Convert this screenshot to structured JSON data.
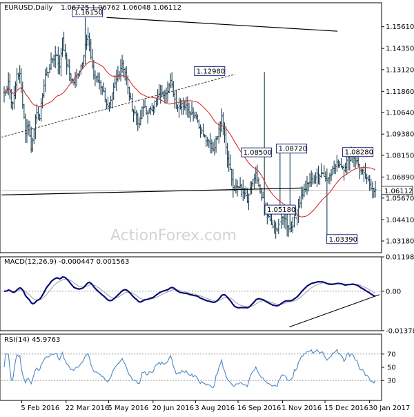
{
  "chart_data": [
    {
      "type": "ohlc",
      "panel": "price",
      "header": {
        "symbol": "EURUSD,Daily",
        "values": "1.06725 1.06762 1.06048 1.06112"
      },
      "ylim": [
        1.025,
        1.17
      ],
      "y_ticks": [
        "1.15610",
        "1.14350",
        "1.13120",
        "1.11860",
        "1.10640",
        "1.09380",
        "1.08150",
        "1.06890",
        "1.05670",
        "1.04410",
        "1.03180"
      ],
      "last_price": "1.06112",
      "x_ticks": [
        "5 Feb 2016",
        "22 Mar 2016",
        "5 May 2016",
        "20 Jun 2016",
        "3 Aug 2016",
        "16 Sep 2016",
        "1 Nov 2016",
        "15 Dec 2016",
        "30 Jan 2017"
      ],
      "annotations": [
        {
          "text": "1.16150",
          "date": "2016-05-03",
          "value": 1.1615
        },
        {
          "text": "1.12980",
          "date": "2016-09-08",
          "value": 1.1298
        },
        {
          "text": "1.08500",
          "date": "2016-10-25",
          "value": 1.085
        },
        {
          "text": "1.08720",
          "date": "2016-11-09",
          "value": 1.0872
        },
        {
          "text": "1.05180",
          "date": "2016-11-15",
          "value": 1.0518
        },
        {
          "text": "1.03390",
          "date": "2017-01-03",
          "value": 1.0339
        },
        {
          "text": "1.08280",
          "date": "2017-02-02",
          "value": 1.0828
        }
      ],
      "closes": [
        1.118,
        1.125,
        1.112,
        1.115,
        1.129,
        1.128,
        1.112,
        1.095,
        1.1,
        1.085,
        1.098,
        1.105,
        1.103,
        1.117,
        1.128,
        1.13,
        1.136,
        1.138,
        1.14,
        1.132,
        1.15,
        1.138,
        1.132,
        1.126,
        1.124,
        1.128,
        1.131,
        1.136,
        1.146,
        1.15,
        1.139,
        1.128,
        1.126,
        1.124,
        1.12,
        1.115,
        1.109,
        1.112,
        1.12,
        1.125,
        1.13,
        1.135,
        1.13,
        1.12,
        1.113,
        1.107,
        1.105,
        1.098,
        1.108,
        1.11,
        1.105,
        1.109,
        1.11,
        1.114,
        1.116,
        1.117,
        1.118,
        1.12,
        1.124,
        1.118,
        1.11,
        1.11,
        1.112,
        1.11,
        1.109,
        1.107,
        1.105,
        1.105,
        1.098,
        1.095,
        1.092,
        1.089,
        1.088,
        1.085,
        1.09,
        1.098,
        1.105,
        1.093,
        1.08,
        1.072,
        1.063,
        1.062,
        1.063,
        1.062,
        1.058,
        1.055,
        1.062,
        1.066,
        1.07,
        1.063,
        1.058,
        1.052,
        1.047,
        1.043,
        1.04,
        1.038,
        1.042,
        1.044,
        1.046,
        1.041,
        1.039,
        1.042,
        1.045,
        1.052,
        1.058,
        1.061,
        1.064,
        1.066,
        1.067,
        1.069,
        1.07,
        1.072,
        1.07,
        1.067,
        1.071,
        1.073,
        1.075,
        1.077,
        1.076,
        1.074,
        1.078,
        1.08,
        1.082,
        1.079,
        1.076,
        1.072,
        1.07,
        1.067,
        1.065,
        1.063,
        1.061
      ]
    },
    {
      "type": "line",
      "panel": "macd",
      "title": "MACD(12,26,9) -0.000447 0.001563",
      "y_ticks": [
        "0.011982",
        "0.00",
        "-0.013788"
      ],
      "ylim": [
        -0.0138,
        0.012
      ]
    },
    {
      "type": "line",
      "panel": "rsi",
      "title": "RSI(14) 45.9763",
      "y_ticks": [
        "100",
        "70",
        "50",
        "30"
      ],
      "ylim": [
        0,
        100
      ]
    }
  ],
  "watermark": "ActionForex.com",
  "colors": {
    "bars": "#1b3f52",
    "ma": "#d32f2f",
    "macd": "#0a0a7a",
    "signal": "#9e9e9e",
    "rsi": "#4a86c5",
    "trend": "#000000"
  }
}
